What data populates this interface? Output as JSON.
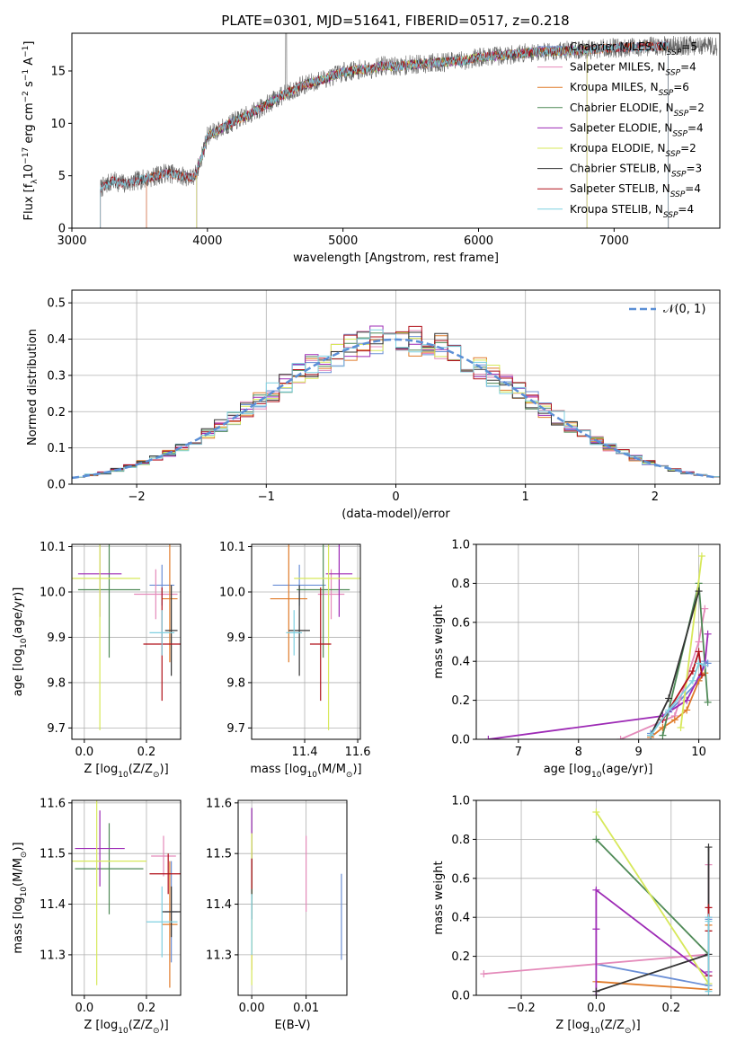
{
  "title": "PLATE=0301, MJD=51641, FIBERID=0517, z=0.218",
  "colors": {
    "chabrier_miles": "#6b8fd6",
    "salpeter_miles": "#e48aba",
    "kroupa_miles": "#e07b2a",
    "chabrier_elodie": "#4f8a57",
    "salpeter_elodie": "#9d2ab5",
    "kroupa_elodie": "#d7e85a",
    "chabrier_stelib": "#333333",
    "salpeter_stelib": "#b0101a",
    "kroupa_stelib": "#7fd0e0",
    "normal_curve": "#5b8fd6",
    "grid": "#b0b0b0"
  },
  "chart_data": [
    {
      "id": "spectrum",
      "type": "line",
      "xlabel": "wavelength [Angstrom, rest frame]",
      "ylabel": "Flux [f",
      "ylabel_sub": "λ",
      "ylabel_mid": "10",
      "ylabel_sup1": "−17",
      "ylabel_rest": " erg cm",
      "ylabel_sup2": "−2",
      "ylabel_rest2": " s",
      "ylabel_sup3": "−1",
      "ylabel_rest3": " A",
      "ylabel_sup4": "−1",
      "ylabel_end": "]",
      "xlim": [
        3000,
        7780
      ],
      "ylim": [
        0,
        18.6
      ],
      "xticks": [
        "3000",
        "4000",
        "5000",
        "6000",
        "7000"
      ],
      "xtick_values": [
        3000,
        4000,
        5000,
        6000,
        7000
      ],
      "yticks": [
        "0",
        "5",
        "10",
        "15"
      ],
      "ytick_values": [
        0,
        5,
        10,
        15
      ],
      "grid": false,
      "legend_placement": "top-right",
      "continuum": {
        "x": [
          3210,
          3300,
          3400,
          3500,
          3600,
          3700,
          3800,
          3900,
          3950,
          4000,
          4100,
          4200,
          4300,
          4400,
          4500,
          4600,
          4700,
          4800,
          4900,
          5000,
          5100,
          5200,
          5300,
          5400,
          5500,
          5600,
          5700,
          5800,
          5900,
          6000,
          6200,
          6400,
          6600,
          6800,
          7000,
          7200,
          7400,
          7500
        ],
        "y": [
          3.8,
          4.5,
          4.2,
          4.6,
          4.9,
          5.3,
          5.0,
          4.8,
          6.5,
          8.8,
          9.5,
          10.2,
          10.8,
          11.5,
          12.3,
          13.0,
          13.6,
          14.0,
          14.4,
          14.9,
          15.1,
          15.2,
          15.5,
          15.4,
          15.6,
          15.7,
          15.8,
          15.9,
          16.0,
          16.3,
          16.5,
          16.8,
          16.9,
          17.0,
          17.2,
          17.3,
          17.4,
          17.4
        ]
      },
      "series_legend": [
        {
          "label": "Chabrier MILES, N",
          "sub": "SSP",
          "suffix": "=5",
          "color_key": "chabrier_miles",
          "start": 3550,
          "end": 7400
        },
        {
          "label": "Salpeter MILES, N",
          "sub": "SSP",
          "suffix": "=4",
          "color_key": "salpeter_miles",
          "start": 3550,
          "end": 7400
        },
        {
          "label": "Kroupa MILES, N",
          "sub": "SSP",
          "suffix": "=6",
          "color_key": "kroupa_miles",
          "start": 3550,
          "end": 7400
        },
        {
          "label": "Chabrier ELODIE, N",
          "sub": "SSP",
          "suffix": "=2",
          "color_key": "chabrier_elodie",
          "start": 3920,
          "end": 6800
        },
        {
          "label": "Salpeter ELODIE, N",
          "sub": "SSP",
          "suffix": "=4",
          "color_key": "salpeter_elodie",
          "start": 3920,
          "end": 6800
        },
        {
          "label": "Kroupa ELODIE, N",
          "sub": "SSP",
          "suffix": "=2",
          "color_key": "kroupa_elodie",
          "start": 3920,
          "end": 6800
        },
        {
          "label": "Chabrier STELIB, N",
          "sub": "SSP",
          "suffix": "=3",
          "color_key": "chabrier_stelib",
          "start": 3210,
          "end": 7400
        },
        {
          "label": "Salpeter STELIB, N",
          "sub": "SSP",
          "suffix": "=4",
          "color_key": "salpeter_stelib",
          "start": 3210,
          "end": 7400
        },
        {
          "label": "Kroupa STELIB, N",
          "sub": "SSP",
          "suffix": "=4",
          "color_key": "kroupa_stelib",
          "start": 3210,
          "end": 7400
        }
      ]
    },
    {
      "id": "residuals",
      "type": "histogram",
      "xlabel": "(data-model)/error",
      "ylabel": "Normed distribution",
      "xlim": [
        -2.5,
        2.5
      ],
      "ylim": [
        0,
        0.535
      ],
      "xticks": [
        "−2",
        "−1",
        "0",
        "1",
        "2"
      ],
      "xtick_values": [
        -2,
        -1,
        0,
        1,
        2
      ],
      "yticks": [
        "0.0",
        "0.1",
        "0.2",
        "0.3",
        "0.4",
        "0.5"
      ],
      "ytick_values": [
        0,
        0.1,
        0.2,
        0.3,
        0.4,
        0.5
      ],
      "grid": true,
      "bin_width": 0.1,
      "legend_placement": "top-right",
      "legend_label": "𝒩(0, 1)"
    },
    {
      "id": "age_vs_Z",
      "type": "errorbar",
      "xlabel": "Z [log",
      "xlabel_sub": "10",
      "xlabel_rest": "(Z/Z",
      "xlabel_sub2": "⊙",
      "xlabel_end": ")]",
      "ylabel": "age  [log",
      "ylabel_sub": "10",
      "ylabel_rest": "(age/yr)]",
      "xlim": [
        -0.04,
        0.31
      ],
      "ylim": [
        9.675,
        10.105
      ],
      "xticks": [
        "0.0",
        "0.2"
      ],
      "xtick_values": [
        0,
        0.2
      ],
      "yticks": [
        "9.7",
        "9.8",
        "9.9",
        "10.0",
        "10.1"
      ],
      "ytick_values": [
        9.7,
        9.8,
        9.9,
        10.0,
        10.1
      ],
      "grid": true,
      "points": [
        {
          "x": 0.25,
          "y": 10.015,
          "xerr": 0.04,
          "yerr": 0.045,
          "color_key": "chabrier_miles"
        },
        {
          "x": 0.23,
          "y": 9.995,
          "xerr": 0.07,
          "yerr": 0.055,
          "color_key": "salpeter_miles"
        },
        {
          "x": 0.275,
          "y": 9.985,
          "xerr": 0.025,
          "yerr": 0.14,
          "color_key": "kroupa_miles"
        },
        {
          "x": 0.08,
          "y": 10.005,
          "xerr": 0.1,
          "yerr": 0.15,
          "color_key": "chabrier_elodie"
        },
        {
          "x": 0.05,
          "y": 10.04,
          "xerr": 0.07,
          "yerr": 0.095,
          "color_key": "salpeter_elodie"
        },
        {
          "x": 0.05,
          "y": 10.03,
          "xerr": 0.13,
          "yerr": 0.335,
          "color_key": "kroupa_elodie"
        },
        {
          "x": 0.28,
          "y": 9.915,
          "xerr": 0.02,
          "yerr": 0.1,
          "color_key": "chabrier_stelib"
        },
        {
          "x": 0.25,
          "y": 9.885,
          "xerr": 0.06,
          "yerr": 0.125,
          "color_key": "salpeter_stelib"
        },
        {
          "x": 0.25,
          "y": 9.91,
          "xerr": 0.04,
          "yerr": 0.05,
          "color_key": "kroupa_stelib"
        }
      ]
    },
    {
      "id": "age_vs_mass",
      "type": "errorbar",
      "xlabel": "mass [log",
      "xlabel_sub": "10",
      "xlabel_rest": "(M/M",
      "xlabel_sub2": "⊙",
      "xlabel_end": ")]",
      "xlim": [
        11.2,
        11.61
      ],
      "ylim": [
        9.675,
        10.105
      ],
      "xticks": [
        "11.4",
        "11.6"
      ],
      "xtick_values": [
        11.4,
        11.6
      ],
      "yticks": [
        "9.7",
        "9.8",
        "9.9",
        "10.0",
        "10.1"
      ],
      "ytick_values": [
        9.7,
        9.8,
        9.9,
        10.0,
        10.1
      ],
      "grid": true,
      "points": [
        {
          "x": 11.38,
          "y": 10.015,
          "xerr": 0.1,
          "yerr": 0.045,
          "color_key": "chabrier_miles"
        },
        {
          "x": 11.5,
          "y": 9.995,
          "xerr": 0.05,
          "yerr": 0.055,
          "color_key": "salpeter_miles"
        },
        {
          "x": 11.34,
          "y": 9.985,
          "xerr": 0.07,
          "yerr": 0.14,
          "color_key": "kroupa_miles"
        },
        {
          "x": 11.47,
          "y": 10.005,
          "xerr": 0.1,
          "yerr": 0.15,
          "color_key": "chabrier_elodie"
        },
        {
          "x": 11.53,
          "y": 10.04,
          "xerr": 0.05,
          "yerr": 0.095,
          "color_key": "salpeter_elodie"
        },
        {
          "x": 11.49,
          "y": 10.03,
          "xerr": 0.13,
          "yerr": 0.335,
          "color_key": "kroupa_elodie"
        },
        {
          "x": 11.38,
          "y": 9.915,
          "xerr": 0.04,
          "yerr": 0.1,
          "color_key": "chabrier_stelib"
        },
        {
          "x": 11.46,
          "y": 9.885,
          "xerr": 0.04,
          "yerr": 0.125,
          "color_key": "salpeter_stelib"
        },
        {
          "x": 11.36,
          "y": 9.91,
          "xerr": 0.03,
          "yerr": 0.05,
          "color_key": "kroupa_stelib"
        }
      ]
    },
    {
      "id": "massweight_vs_age",
      "type": "line",
      "xlabel": "age  [log",
      "xlabel_sub": "10",
      "xlabel_rest": "(age/yr)]",
      "ylabel": "mass weight",
      "xlim": [
        6.3,
        10.35
      ],
      "ylim": [
        0,
        1.0
      ],
      "xticks": [
        "7",
        "8",
        "9",
        "10"
      ],
      "xtick_values": [
        7,
        8,
        9,
        10
      ],
      "yticks": [
        "0.0",
        "0.2",
        "0.4",
        "0.6",
        "0.8",
        "1.0"
      ],
      "ytick_values": [
        0,
        0.2,
        0.4,
        0.6,
        0.8,
        1.0
      ],
      "grid": true,
      "series": [
        {
          "color_key": "chabrier_miles",
          "x": [
            9.2,
            9.5,
            10.0,
            10.1,
            10.15
          ],
          "y": [
            0.03,
            0.14,
            0.3,
            0.4,
            0.39
          ]
        },
        {
          "color_key": "salpeter_miles",
          "x": [
            8.7,
            9.6,
            10.0,
            10.1
          ],
          "y": [
            0.0,
            0.12,
            0.5,
            0.67
          ]
        },
        {
          "color_key": "kroupa_miles",
          "x": [
            9.2,
            9.4,
            9.6,
            9.8,
            10.0,
            10.1
          ],
          "y": [
            0.01,
            0.06,
            0.1,
            0.15,
            0.3,
            0.34
          ]
        },
        {
          "color_key": "chabrier_elodie",
          "x": [
            9.4,
            10.0,
            10.15
          ],
          "y": [
            0.02,
            0.8,
            0.19
          ]
        },
        {
          "color_key": "salpeter_elodie",
          "x": [
            6.5,
            9.4,
            9.8,
            10.1,
            10.15
          ],
          "y": [
            0.0,
            0.12,
            0.2,
            0.38,
            0.54
          ]
        },
        {
          "color_key": "kroupa_elodie",
          "x": [
            9.7,
            10.05
          ],
          "y": [
            0.06,
            0.94
          ]
        },
        {
          "color_key": "chabrier_stelib",
          "x": [
            9.2,
            9.5,
            10.0
          ],
          "y": [
            0.02,
            0.21,
            0.76
          ]
        },
        {
          "color_key": "salpeter_stelib",
          "x": [
            9.4,
            9.9,
            10.0,
            10.05
          ],
          "y": [
            0.1,
            0.35,
            0.45,
            0.33
          ]
        },
        {
          "color_key": "kroupa_stelib",
          "x": [
            9.2,
            9.5,
            9.9,
            10.0,
            10.1
          ],
          "y": [
            0.02,
            0.15,
            0.3,
            0.39,
            0.38
          ]
        }
      ]
    },
    {
      "id": "mass_vs_Z",
      "type": "errorbar",
      "xlabel": "Z [log",
      "xlabel_sub": "10",
      "xlabel_rest": "(Z/Z",
      "xlabel_sub2": "⊙",
      "xlabel_end": ")]",
      "ylabel": "mass [log",
      "ylabel_sub": "10",
      "ylabel_rest": "(M/M",
      "ylabel_sub2": "⊙",
      "ylabel_end": ")]",
      "xlim": [
        -0.04,
        0.31
      ],
      "ylim": [
        11.22,
        11.605
      ],
      "xticks": [
        "0.0",
        "0.2"
      ],
      "xtick_values": [
        0,
        0.2
      ],
      "yticks": [
        "11.3",
        "11.4",
        "11.5",
        "11.6"
      ],
      "ytick_values": [
        11.3,
        11.4,
        11.5,
        11.6
      ],
      "grid": true,
      "points": [
        {
          "x": 0.28,
          "y": 11.385,
          "xerr": 0.02,
          "yerr": 0.1,
          "color_key": "chabrier_miles"
        },
        {
          "x": 0.255,
          "y": 11.495,
          "xerr": 0.04,
          "yerr": 0.04,
          "color_key": "salpeter_miles"
        },
        {
          "x": 0.275,
          "y": 11.36,
          "xerr": 0.025,
          "yerr": 0.125,
          "color_key": "kroupa_miles"
        },
        {
          "x": 0.08,
          "y": 11.47,
          "xerr": 0.11,
          "yerr": 0.09,
          "color_key": "chabrier_elodie"
        },
        {
          "x": 0.05,
          "y": 11.51,
          "xerr": 0.08,
          "yerr": 0.075,
          "color_key": "salpeter_elodie"
        },
        {
          "x": 0.04,
          "y": 11.485,
          "xerr": 0.16,
          "yerr": 0.245,
          "color_key": "kroupa_elodie"
        },
        {
          "x": 0.28,
          "y": 11.385,
          "xerr": 0.03,
          "yerr": 0.05,
          "color_key": "chabrier_stelib"
        },
        {
          "x": 0.27,
          "y": 11.46,
          "xerr": 0.06,
          "yerr": 0.04,
          "color_key": "salpeter_stelib"
        },
        {
          "x": 0.25,
          "y": 11.365,
          "xerr": 0.05,
          "yerr": 0.07,
          "color_key": "kroupa_stelib"
        }
      ]
    },
    {
      "id": "mass_vs_EBV",
      "type": "errorbar",
      "xlabel": "E(B-V)",
      "xlim": [
        -0.0025,
        0.0175
      ],
      "ylim": [
        11.22,
        11.605
      ],
      "xticks": [
        "0.00",
        "0.01"
      ],
      "xtick_values": [
        0,
        0.01
      ],
      "yticks": [
        "11.3",
        "11.4",
        "11.5",
        "11.6"
      ],
      "ytick_values": [
        11.3,
        11.4,
        11.5,
        11.6
      ],
      "grid": true,
      "points": [
        {
          "x": 0.0165,
          "y": 11.375,
          "xerr": 0,
          "yerr": 0.085,
          "color_key": "chabrier_miles"
        },
        {
          "x": 0.01,
          "y": 11.46,
          "xerr": 0,
          "yerr": 0.075,
          "color_key": "salpeter_miles"
        },
        {
          "x": 0.0,
          "y": 11.39,
          "xerr": 0,
          "yerr": 0.12,
          "color_key": "kroupa_miles"
        },
        {
          "x": 0.0,
          "y": 11.5,
          "xerr": 0,
          "yerr": 0.09,
          "color_key": "chabrier_elodie"
        },
        {
          "x": 0.0,
          "y": 11.53,
          "xerr": 0,
          "yerr": 0.06,
          "color_key": "salpeter_elodie"
        },
        {
          "x": 0.0,
          "y": 11.39,
          "xerr": 0,
          "yerr": 0.15,
          "color_key": "kroupa_elodie"
        },
        {
          "x": 0.0,
          "y": 11.43,
          "xerr": 0,
          "yerr": 0.06,
          "color_key": "chabrier_stelib"
        },
        {
          "x": 0.0,
          "y": 11.46,
          "xerr": 0,
          "yerr": 0.03,
          "color_key": "salpeter_stelib"
        },
        {
          "x": 0.0,
          "y": 11.36,
          "xerr": 0,
          "yerr": 0.06,
          "color_key": "kroupa_stelib"
        }
      ]
    },
    {
      "id": "massweight_vs_Z",
      "type": "line",
      "xlabel": "Z [log",
      "xlabel_sub": "10",
      "xlabel_rest": "(Z/Z",
      "xlabel_sub2": "⊙",
      "xlabel_end": ")]",
      "ylabel": "mass weight",
      "xlim": [
        -0.32,
        0.33
      ],
      "ylim": [
        0,
        1.0
      ],
      "xticks": [
        "−0.2",
        "0.0",
        "0.2"
      ],
      "xtick_values": [
        -0.2,
        0,
        0.2
      ],
      "yticks": [
        "0.0",
        "0.2",
        "0.4",
        "0.6",
        "0.8",
        "1.0"
      ],
      "ytick_values": [
        0,
        0.2,
        0.4,
        0.6,
        0.8,
        1.0
      ],
      "grid": true,
      "series": [
        {
          "color_key": "chabrier_miles",
          "x": [
            0.0,
            0.3,
            0.3,
            0.3
          ],
          "y": [
            0.16,
            0.05,
            0.39,
            0.4
          ]
        },
        {
          "color_key": "salpeter_miles",
          "x": [
            -0.3,
            0.3,
            0.3
          ],
          "y": [
            0.11,
            0.21,
            0.67
          ]
        },
        {
          "color_key": "kroupa_miles",
          "x": [
            0.0,
            0.3,
            0.3,
            0.3
          ],
          "y": [
            0.07,
            0.03,
            0.33,
            0.36
          ]
        },
        {
          "color_key": "chabrier_elodie",
          "x": [
            0.0,
            0.3
          ],
          "y": [
            0.8,
            0.21
          ]
        },
        {
          "color_key": "salpeter_elodie",
          "x": [
            0.0,
            0.0,
            0.0,
            0.3,
            0.3
          ],
          "y": [
            0.0,
            0.34,
            0.54,
            0.1,
            0.12
          ]
        },
        {
          "color_key": "kroupa_elodie",
          "x": [
            0.0,
            0.3
          ],
          "y": [
            0.94,
            0.06
          ]
        },
        {
          "color_key": "chabrier_stelib",
          "x": [
            0.0,
            0.3,
            0.3
          ],
          "y": [
            0.02,
            0.21,
            0.76
          ]
        },
        {
          "color_key": "salpeter_stelib",
          "x": [
            0.3,
            0.3,
            0.3
          ],
          "y": [
            0.1,
            0.33,
            0.45
          ]
        },
        {
          "color_key": "kroupa_stelib",
          "x": [
            0.3,
            0.3,
            0.3
          ],
          "y": [
            0.02,
            0.38,
            0.4
          ]
        }
      ]
    }
  ]
}
